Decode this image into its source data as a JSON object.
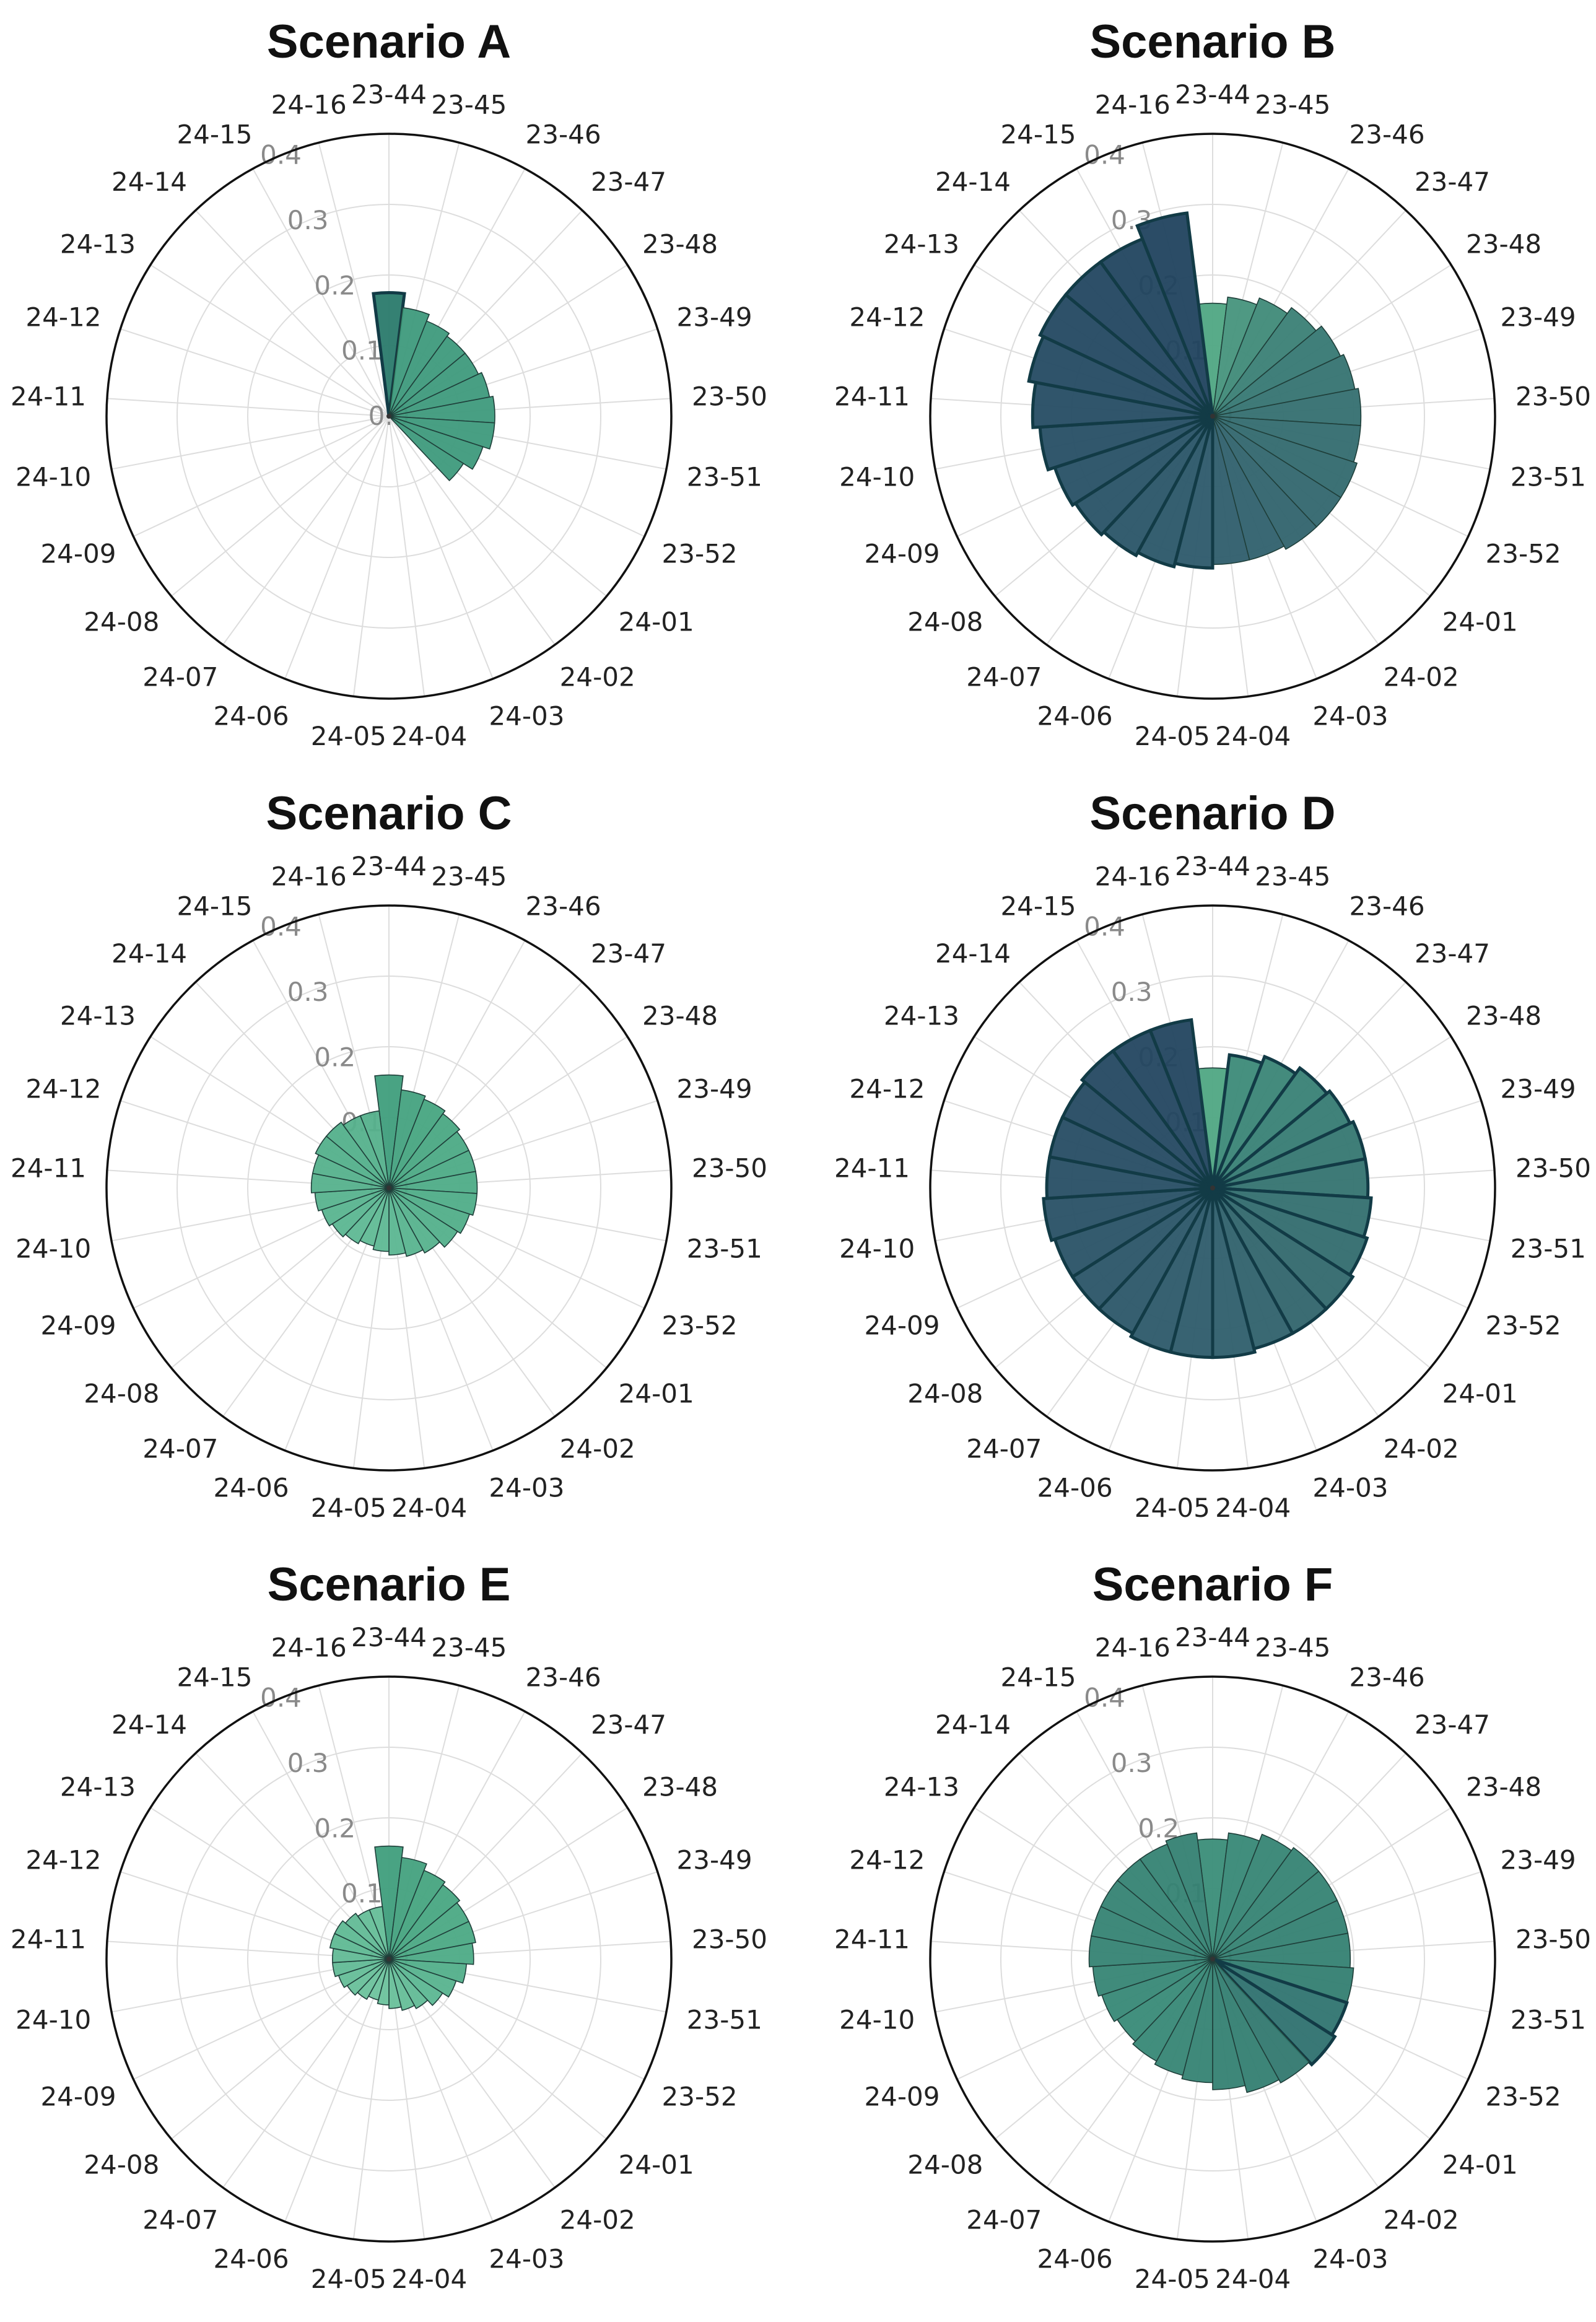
{
  "chart_data": [
    {
      "type": "polar-bar",
      "title": "Scenario A",
      "categories": [
        "23-44",
        "23-45",
        "23-46",
        "23-47",
        "23-48",
        "23-49",
        "23-50",
        "23-51",
        "23-52",
        "24-01",
        "24-02",
        "24-03",
        "24-04",
        "24-05",
        "24-06",
        "24-07",
        "24-08",
        "24-09",
        "24-10",
        "24-11",
        "24-12",
        "24-13",
        "24-14",
        "24-15",
        "24-16"
      ],
      "radial_ticks": [
        "0.0",
        "0.1",
        "0.2",
        "0.3",
        "0.4"
      ],
      "rlim": [
        0,
        0.4
      ],
      "grid": true,
      "values": [
        0.175,
        0.155,
        0.145,
        0.14,
        0.14,
        0.145,
        0.15,
        0.15,
        0.14,
        0.125,
        0.0,
        0.0,
        0.0,
        0.0,
        0.0,
        0.0,
        0.0,
        0.0,
        0.0,
        0.0,
        0.0,
        0.0,
        0.0,
        0.0,
        0.0
      ],
      "highlight": [
        0
      ],
      "colors": [
        "#2a7a6c",
        "#3e9a7c",
        "#3e9a7c",
        "#3e9a7c",
        "#3e9a7c",
        "#3e9a7c",
        "#3e9a7c",
        "#3e9a7c",
        "#3e9a7c",
        "#3e9a7c"
      ]
    },
    {
      "type": "polar-bar",
      "title": "Scenario B",
      "categories": [
        "23-44",
        "23-45",
        "23-46",
        "23-47",
        "23-48",
        "23-49",
        "23-50",
        "23-51",
        "23-52",
        "24-01",
        "24-02",
        "24-03",
        "24-04",
        "24-05",
        "24-06",
        "24-07",
        "24-08",
        "24-09",
        "24-10",
        "24-11",
        "24-12",
        "24-13",
        "24-14",
        "24-15",
        "24-16"
      ],
      "radial_ticks": [
        "0.0",
        "0.1",
        "0.2",
        "0.3",
        "0.4"
      ],
      "rlim": [
        0,
        0.4
      ],
      "grid": true,
      "values": [
        0.16,
        0.17,
        0.18,
        0.19,
        0.2,
        0.205,
        0.21,
        0.21,
        0.215,
        0.215,
        0.215,
        0.21,
        0.21,
        0.215,
        0.22,
        0.225,
        0.23,
        0.235,
        0.245,
        0.255,
        0.265,
        0.27,
        0.27,
        0.27,
        0.29
      ],
      "highlight": [
        13,
        14,
        15,
        16,
        17,
        18,
        19,
        20,
        21,
        22,
        23,
        24
      ],
      "colors": [
        "#4fa683",
        "#46937c",
        "#3f8a78",
        "#3a8075",
        "#367873",
        "#357371",
        "#346f70",
        "#336c6f",
        "#32696e",
        "#31666e",
        "#30636d",
        "#2f606d",
        "#2e5d6c",
        "#2c586a",
        "#2a5668",
        "#295467",
        "#285266",
        "#275065",
        "#264e64",
        "#254c63",
        "#244a62",
        "#234861",
        "#224660",
        "#21445f",
        "#20425e"
      ]
    },
    {
      "type": "polar-bar",
      "title": "Scenario C",
      "categories": [
        "23-44",
        "23-45",
        "23-46",
        "23-47",
        "23-48",
        "23-49",
        "23-50",
        "23-51",
        "23-52",
        "24-01",
        "24-02",
        "24-03",
        "24-04",
        "24-05",
        "24-06",
        "24-07",
        "24-08",
        "24-09",
        "24-10",
        "24-11",
        "24-12",
        "24-13",
        "24-14",
        "24-15",
        "24-16"
      ],
      "radial_ticks": [
        "0.0",
        "0.1",
        "0.2",
        "0.3",
        "0.4"
      ],
      "rlim": [
        0,
        0.4
      ],
      "grid": true,
      "values": [
        0.16,
        0.14,
        0.135,
        0.13,
        0.125,
        0.125,
        0.125,
        0.125,
        0.12,
        0.115,
        0.105,
        0.1,
        0.095,
        0.09,
        0.085,
        0.09,
        0.095,
        0.1,
        0.105,
        0.11,
        0.11,
        0.115,
        0.115,
        0.11,
        0.11
      ],
      "highlight": [],
      "colors": [
        "#3f9e7c",
        "#44a27f",
        "#47a581",
        "#4aa883",
        "#4caa85",
        "#4dab86",
        "#4eac87",
        "#4fad88",
        "#51ae89",
        "#53b08b",
        "#56b28d",
        "#59b48f",
        "#5bb691",
        "#5eb893",
        "#60ba95",
        "#5eb893",
        "#5bb691",
        "#59b48f",
        "#57b38e",
        "#55b18c",
        "#55b18c",
        "#53b08b",
        "#53b08b",
        "#55b18c",
        "#55b18c"
      ]
    },
    {
      "type": "polar-bar",
      "title": "Scenario D",
      "categories": [
        "23-44",
        "23-45",
        "23-46",
        "23-47",
        "23-48",
        "23-49",
        "23-50",
        "23-51",
        "23-52",
        "24-01",
        "24-02",
        "24-03",
        "24-04",
        "24-05",
        "24-06",
        "24-07",
        "24-08",
        "24-09",
        "24-10",
        "24-11",
        "24-12",
        "24-13",
        "24-14",
        "24-15",
        "24-16"
      ],
      "radial_ticks": [
        "0.0",
        "0.1",
        "0.2",
        "0.3",
        "0.4"
      ],
      "rlim": [
        0,
        0.4
      ],
      "grid": true,
      "values": [
        0.17,
        0.19,
        0.2,
        0.21,
        0.215,
        0.22,
        0.22,
        0.225,
        0.23,
        0.235,
        0.235,
        0.235,
        0.24,
        0.24,
        0.24,
        0.235,
        0.235,
        0.235,
        0.24,
        0.235,
        0.235,
        0.235,
        0.24,
        0.24,
        0.24
      ],
      "highlight": [
        1,
        2,
        3,
        4,
        5,
        6,
        7,
        8,
        9,
        10,
        11,
        12,
        13,
        14,
        15,
        16,
        17,
        18,
        19,
        20,
        21,
        22,
        23,
        24
      ],
      "colors": [
        "#4fa683",
        "#3c8a78",
        "#3a8576",
        "#388175",
        "#367b73",
        "#357771",
        "#347370",
        "#336f6f",
        "#326b6e",
        "#31686d",
        "#30646c",
        "#2f616c",
        "#2e5e6b",
        "#2d5b6a",
        "#2c5869",
        "#2b5668",
        "#2a5467",
        "#295266",
        "#285065",
        "#274e64",
        "#264c63",
        "#254a62",
        "#244861",
        "#234660",
        "#22445f"
      ]
    },
    {
      "type": "polar-bar",
      "title": "Scenario E",
      "categories": [
        "23-44",
        "23-45",
        "23-46",
        "23-47",
        "23-48",
        "23-49",
        "23-50",
        "23-51",
        "23-52",
        "24-01",
        "24-02",
        "24-03",
        "24-04",
        "24-05",
        "24-06",
        "24-07",
        "24-08",
        "24-09",
        "24-10",
        "24-11",
        "24-12",
        "24-13",
        "24-14",
        "24-15",
        "24-16"
      ],
      "radial_ticks": [
        "0.0",
        "0.1",
        "0.2",
        "0.3",
        "0.4"
      ],
      "rlim": [
        0,
        0.4
      ],
      "grid": true,
      "values": [
        0.16,
        0.145,
        0.135,
        0.13,
        0.125,
        0.125,
        0.12,
        0.11,
        0.1,
        0.09,
        0.08,
        0.075,
        0.07,
        0.065,
        0.06,
        0.065,
        0.07,
        0.075,
        0.08,
        0.08,
        0.085,
        0.085,
        0.08,
        0.075,
        0.075
      ],
      "highlight": [],
      "colors": [
        "#3f9e7c",
        "#43a17e",
        "#46a480",
        "#48a682",
        "#4ba984",
        "#4ba984",
        "#4dab86",
        "#52af8a",
        "#57b38e",
        "#5cb792",
        "#62bb96",
        "#65be98",
        "#68c09a",
        "#6bc29c",
        "#6ec49e",
        "#6bc29c",
        "#68c09a",
        "#65be98",
        "#62bb96",
        "#62bb96",
        "#5fb994",
        "#5fb994",
        "#62bb96",
        "#65be98",
        "#65be98"
      ]
    },
    {
      "type": "polar-bar",
      "title": "Scenario F",
      "categories": [
        "23-44",
        "23-45",
        "23-46",
        "23-47",
        "23-48",
        "23-49",
        "23-50",
        "23-51",
        "23-52",
        "24-01",
        "24-02",
        "24-03",
        "24-04",
        "24-05",
        "24-06",
        "24-07",
        "24-08",
        "24-09",
        "24-10",
        "24-11",
        "24-12",
        "24-13",
        "24-14",
        "24-15",
        "24-16"
      ],
      "radial_ticks": [
        "0.0",
        "0.1",
        "0.2",
        "0.3",
        "0.4"
      ],
      "rlim": [
        0,
        0.4
      ],
      "grid": true,
      "values": [
        0.17,
        0.18,
        0.19,
        0.195,
        0.195,
        0.195,
        0.195,
        0.2,
        0.2,
        0.205,
        0.2,
        0.195,
        0.185,
        0.175,
        0.17,
        0.165,
        0.16,
        0.165,
        0.17,
        0.175,
        0.175,
        0.175,
        0.175,
        0.175,
        0.18
      ],
      "highlight": [
        8,
        9
      ],
      "colors": [
        "#3a8d78",
        "#378876",
        "#368574",
        "#358373",
        "#358373",
        "#348172",
        "#348172",
        "#337e71",
        "#2f7470",
        "#2e716f",
        "#31786f",
        "#337e71",
        "#348172",
        "#358373",
        "#368574",
        "#378876",
        "#388a77",
        "#378876",
        "#368574",
        "#358373",
        "#358373",
        "#358373",
        "#358373",
        "#358373",
        "#348172"
      ]
    }
  ]
}
